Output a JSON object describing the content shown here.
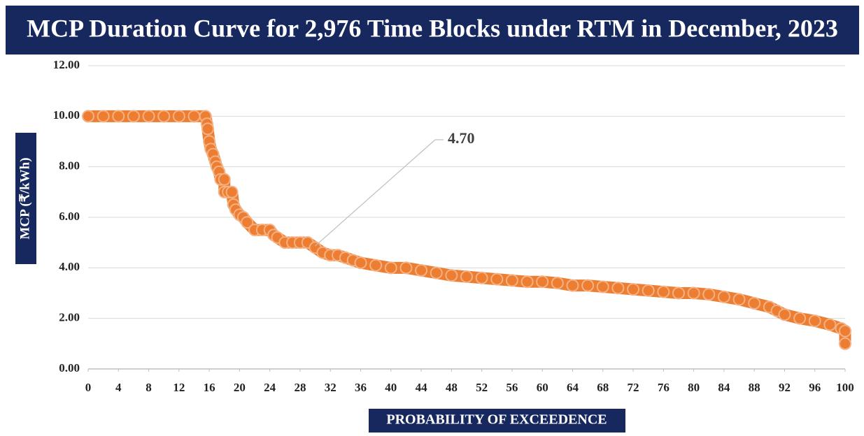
{
  "chart_data": {
    "type": "scatter",
    "title": "MCP Duration Curve for 2,976 Time Blocks under RTM in December, 2023",
    "x_label": "PROBABILITY OF EXCEEDENCE",
    "y_label": "MCP (₹/kWh)",
    "color": "#ed7d31",
    "grid": true,
    "xlim": [
      0,
      100
    ],
    "ylim": [
      0,
      12
    ],
    "xticks": [
      0,
      4,
      8,
      12,
      16,
      20,
      24,
      28,
      32,
      36,
      40,
      44,
      48,
      52,
      56,
      60,
      64,
      68,
      72,
      76,
      80,
      84,
      88,
      92,
      96,
      100
    ],
    "yticks": [
      {
        "value": 0,
        "label": "0.00"
      },
      {
        "value": 2,
        "label": "2.00"
      },
      {
        "value": 4,
        "label": "4.00"
      },
      {
        "value": 6,
        "label": "6.00"
      },
      {
        "value": 8,
        "label": "8.00"
      },
      {
        "value": 10,
        "label": "10.00"
      },
      {
        "value": 12,
        "label": "12.00"
      }
    ],
    "annotation": {
      "text": "4.70",
      "x": 30,
      "y": 4.7
    },
    "x": [
      0,
      2,
      4,
      6,
      8,
      10,
      12,
      14,
      15.5,
      15.7,
      15.8,
      16,
      16.2,
      16.5,
      16.8,
      17,
      17.3,
      17.5,
      18,
      18,
      18.5,
      19,
      19.2,
      19.5,
      20,
      20.5,
      21,
      22,
      23,
      24,
      24.5,
      25,
      26,
      27,
      28,
      29,
      30,
      31,
      32,
      33,
      34,
      35,
      36,
      38,
      40,
      42,
      44,
      46,
      48,
      50,
      52,
      54,
      56,
      58,
      60,
      62,
      64,
      66,
      68,
      70,
      72,
      74,
      76,
      78,
      80,
      82,
      84,
      86,
      88,
      90,
      91,
      92,
      94,
      96,
      98,
      99.5,
      100,
      100
    ],
    "values": [
      10,
      10,
      10,
      10,
      10,
      10,
      10,
      10,
      10,
      9.7,
      9.5,
      9,
      8.7,
      8.5,
      8.2,
      8,
      7.8,
      7.5,
      7.5,
      7,
      7,
      7,
      6.5,
      6.3,
      6.1,
      6,
      5.8,
      5.5,
      5.5,
      5.5,
      5.3,
      5.2,
      5,
      5,
      5,
      5,
      4.8,
      4.6,
      4.5,
      4.5,
      4.4,
      4.3,
      4.2,
      4.1,
      4,
      4,
      3.9,
      3.8,
      3.7,
      3.65,
      3.6,
      3.55,
      3.5,
      3.45,
      3.45,
      3.4,
      3.3,
      3.3,
      3.25,
      3.2,
      3.15,
      3.1,
      3.05,
      3,
      3,
      2.95,
      2.85,
      2.75,
      2.6,
      2.45,
      2.3,
      2.15,
      2,
      1.9,
      1.75,
      1.6,
      1.5,
      1
    ]
  }
}
